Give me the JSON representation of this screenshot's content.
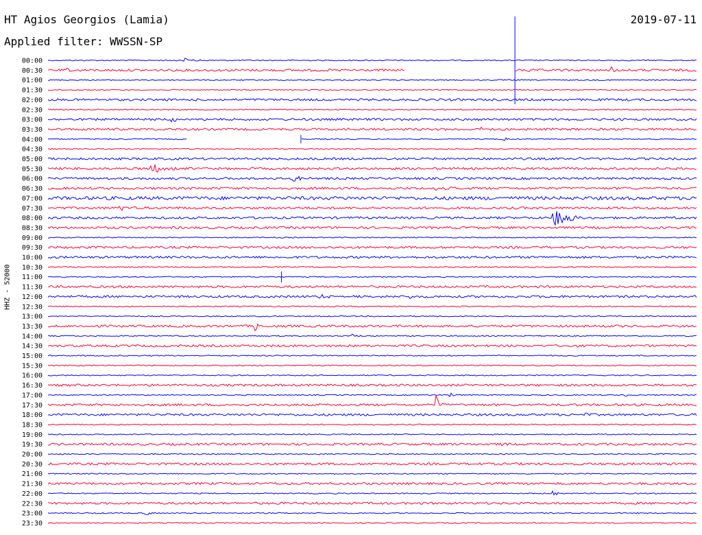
{
  "header": {
    "title": "HT Agios Georgios (Lamia)",
    "filter": "Applied filter: WWSSN-SP",
    "date": "2019-07-11"
  },
  "channel_label": "HHZ - 52000",
  "chart_data": {
    "type": "line",
    "title": "HT Agios Georgios (Lamia)",
    "subtitle": "Applied filter: WWSSN-SP",
    "date": "2019-07-11",
    "ylabel": "HHZ - 52000",
    "grid": false,
    "colors": [
      "#0000ff",
      "#ff0033"
    ],
    "rows": [
      "00:00",
      "00:30",
      "01:00",
      "01:30",
      "02:00",
      "02:30",
      "03:00",
      "03:30",
      "04:00",
      "04:30",
      "05:00",
      "05:30",
      "06:00",
      "06:30",
      "07:00",
      "07:30",
      "08:00",
      "08:30",
      "09:00",
      "09:30",
      "10:00",
      "10:30",
      "11:00",
      "11:30",
      "12:00",
      "12:30",
      "13:00",
      "13:30",
      "14:00",
      "14:30",
      "15:00",
      "15:30",
      "16:00",
      "16:30",
      "17:00",
      "17:30",
      "18:00",
      "18:30",
      "19:00",
      "19:30",
      "20:00",
      "20:30",
      "21:00",
      "21:30",
      "22:00",
      "22:30",
      "23:00",
      "23:30"
    ],
    "noise": [
      1,
      2,
      1,
      1,
      2,
      1,
      2,
      2,
      1,
      1,
      2,
      2,
      2,
      2,
      3,
      2,
      2,
      2,
      1,
      2,
      2,
      1,
      1,
      2,
      2,
      1,
      1,
      2,
      1,
      2,
      1,
      1,
      1,
      2,
      1,
      2,
      2,
      1,
      1,
      2,
      1,
      2,
      1,
      2,
      1,
      2,
      1,
      1
    ],
    "gaps": [
      {
        "row": 1,
        "from": 0.55,
        "to": 0.72
      },
      {
        "row": 8,
        "from": 0.215,
        "to": 0.39
      }
    ],
    "events": [
      {
        "row": 0,
        "at": 0.21,
        "amp": 5,
        "dur": 0.03
      },
      {
        "row": 1,
        "at": 0.03,
        "amp": 3,
        "dur": 0.01
      },
      {
        "row": 1,
        "at": 0.45,
        "amp": 3,
        "dur": 0.01
      },
      {
        "row": 1,
        "at": 0.74,
        "amp": 3,
        "dur": 0.01
      },
      {
        "row": 1,
        "at": 0.87,
        "amp": 4,
        "dur": 0.01
      },
      {
        "row": 6,
        "at": 0.19,
        "amp": 3,
        "dur": 0.06
      },
      {
        "row": 7,
        "at": 0.46,
        "amp": 3,
        "dur": 0.03
      },
      {
        "row": 7,
        "at": 0.67,
        "amp": 4,
        "dur": 0.01
      },
      {
        "row": 8,
        "at": 0.7,
        "amp": 3,
        "dur": 0.03
      },
      {
        "row": 10,
        "at": 0.82,
        "amp": 4,
        "dur": 0.02
      },
      {
        "row": 11,
        "at": 0.16,
        "amp": 9,
        "dur": 0.04
      },
      {
        "row": 12,
        "at": 0.38,
        "amp": 4,
        "dur": 0.04
      },
      {
        "row": 13,
        "at": 0.6,
        "amp": 3,
        "dur": 0.05
      },
      {
        "row": 15,
        "at": 0.11,
        "amp": 4,
        "dur": 0.04
      },
      {
        "row": 16,
        "at": 0.78,
        "amp": 24,
        "dur": 0.05
      },
      {
        "row": 24,
        "at": 0.42,
        "amp": 3,
        "dur": 0.07
      },
      {
        "row": 24,
        "at": 0.56,
        "amp": 3,
        "dur": 0.01
      },
      {
        "row": 27,
        "at": 0.32,
        "amp": 8,
        "dur": 0.01
      },
      {
        "row": 28,
        "at": 0.47,
        "amp": 3,
        "dur": 0.02
      },
      {
        "row": 34,
        "at": 0.62,
        "amp": 4,
        "dur": 0.03
      },
      {
        "row": 34,
        "at": 0.89,
        "amp": 6,
        "dur": 0.01
      },
      {
        "row": 35,
        "at": 0.6,
        "amp": 14,
        "dur": 0.01
      },
      {
        "row": 36,
        "at": 0.83,
        "amp": 4,
        "dur": 0.01
      },
      {
        "row": 39,
        "at": 0.7,
        "amp": 4,
        "dur": 0.02
      },
      {
        "row": 43,
        "at": 0.74,
        "amp": 5,
        "dur": 0.04
      },
      {
        "row": 44,
        "at": 0.78,
        "amp": 5,
        "dur": 0.01
      },
      {
        "row": 46,
        "at": 0.15,
        "amp": 4,
        "dur": 0.02
      }
    ],
    "spikes": [
      {
        "row": 0,
        "at": 0.72,
        "up": 64,
        "down": 64
      },
      {
        "row": 22,
        "at": 0.36,
        "up": 8,
        "down": 8
      },
      {
        "row": 8,
        "at": 0.39,
        "up": 6,
        "down": 6
      }
    ]
  }
}
